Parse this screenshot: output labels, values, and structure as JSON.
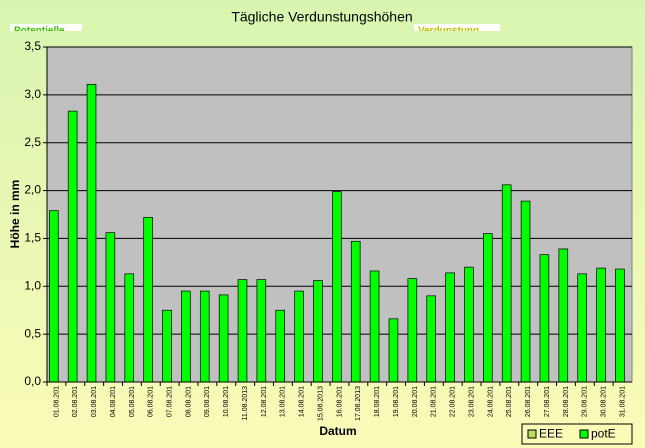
{
  "chart_data": {
    "type": "bar",
    "title": "Tägliche Verdunstungshöhen",
    "annotations": [
      "Potentielle",
      "Verdunstung"
    ],
    "y_label": "Höhe in mm",
    "x_label": "Datum",
    "categories": [
      "01.08.201",
      "02.08.201",
      "03.08.201",
      "04.08.201",
      "05.08.201",
      "06.08.201",
      "07.08.201",
      "08.08.201",
      "09.08.201",
      "10.08.201",
      "11.08.2013",
      "12.08.201",
      "13.08.201",
      "14.08.201",
      "15.08.2013",
      "16.08.201",
      "17.08.2013",
      "18.08.201",
      "19.08.201",
      "20.08.201",
      "21.08.201",
      "22.08.201",
      "23.08.201",
      "24.08.201",
      "25.08.201",
      "26.08.201",
      "27.08.201",
      "28.08.201",
      "29.08.201",
      "30.08.201",
      "31.08.201"
    ],
    "series": [
      {
        "name": "EEE",
        "color": "#b8e060",
        "values": [
          null,
          null,
          null,
          null,
          null,
          null,
          null,
          null,
          null,
          null,
          null,
          null,
          null,
          null,
          null,
          null,
          null,
          null,
          null,
          null,
          null,
          null,
          null,
          null,
          null,
          null,
          null,
          null,
          null,
          null,
          null
        ]
      },
      {
        "name": "potE",
        "color": "#00ff00",
        "values": [
          1.79,
          2.83,
          3.11,
          1.56,
          1.13,
          1.72,
          0.75,
          0.95,
          0.95,
          0.91,
          1.07,
          1.07,
          0.75,
          0.95,
          1.06,
          1.99,
          1.47,
          1.16,
          0.66,
          1.08,
          0.9,
          1.14,
          1.2,
          1.55,
          2.06,
          1.89,
          1.33,
          1.39,
          1.13,
          1.19,
          1.18
        ]
      }
    ],
    "ylim": [
      0,
      3.5
    ],
    "yticks": [
      {
        "value": 0,
        "label": "0,0"
      },
      {
        "value": 0.5,
        "label": "0,5"
      },
      {
        "value": 1,
        "label": "1,0"
      },
      {
        "value": 1.5,
        "label": "1,5"
      },
      {
        "value": 2,
        "label": "2,0"
      },
      {
        "value": 2.5,
        "label": "2,5"
      },
      {
        "value": 3,
        "label": "3,0"
      },
      {
        "value": 3.5,
        "label": "3,5"
      }
    ],
    "grid": true,
    "legend": "bottom-right"
  }
}
